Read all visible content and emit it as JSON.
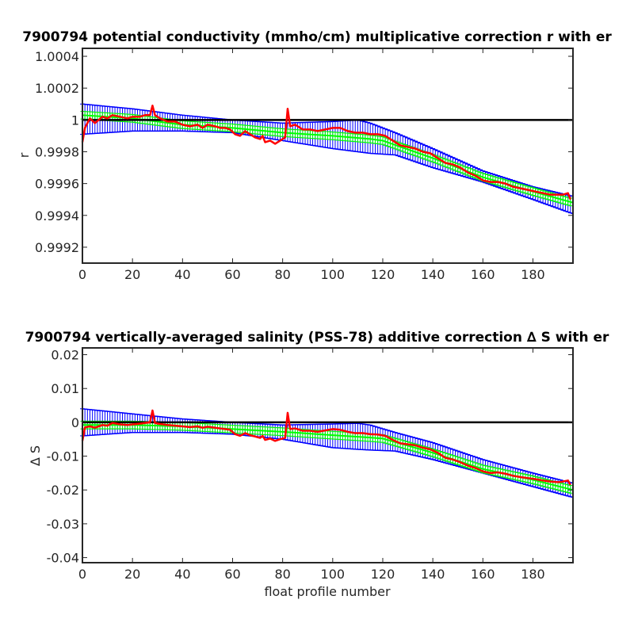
{
  "chart_data": [
    {
      "type": "line",
      "title": "7900794 potential conductivity (mmho/cm) multiplicative correction r with er",
      "xlabel": "",
      "ylabel": "r",
      "xlim": [
        0,
        196
      ],
      "ylim": [
        0.9991,
        1.00045
      ],
      "x_ticks": [
        "0",
        "20",
        "40",
        "60",
        "80",
        "100",
        "120",
        "140",
        "160",
        "180"
      ],
      "y_ticks": [
        "0.9992",
        "0.9994",
        "0.9996",
        "0.9998",
        "1",
        "1.0002",
        "1.0004"
      ],
      "y_tick_values": [
        0.9992,
        0.9994,
        0.9996,
        0.9998,
        1.0,
        1.0002,
        1.0004
      ],
      "reference_line": 1.0,
      "grid": false,
      "series": [
        {
          "color": "#ff0000",
          "role": "raw-correction",
          "points": [
            [
              0,
              0.99986
            ],
            [
              1,
              0.99995
            ],
            [
              3,
              1.00001
            ],
            [
              5,
              0.99998
            ],
            [
              8,
              1.00002
            ],
            [
              10,
              1.00001
            ],
            [
              12,
              1.00003
            ],
            [
              15,
              1.00002
            ],
            [
              18,
              1.00001
            ],
            [
              20,
              1.00002
            ],
            [
              23,
              1.00002
            ],
            [
              25,
              1.00003
            ],
            [
              27,
              1.00003
            ],
            [
              28,
              1.00009
            ],
            [
              29,
              1.00003
            ],
            [
              31,
              1.00001
            ],
            [
              34,
              0.99999
            ],
            [
              37,
              0.99999
            ],
            [
              40,
              0.99997
            ],
            [
              43,
              0.99996
            ],
            [
              46,
              0.99997
            ],
            [
              48,
              0.99995
            ],
            [
              50,
              0.99997
            ],
            [
              53,
              0.99996
            ],
            [
              55,
              0.99995
            ],
            [
              57,
              0.99995
            ],
            [
              59,
              0.99994
            ],
            [
              61,
              0.99991
            ],
            [
              63,
              0.9999
            ],
            [
              65,
              0.99993
            ],
            [
              67,
              0.99991
            ],
            [
              69,
              0.99989
            ],
            [
              71,
              0.99988
            ],
            [
              72,
              0.9999
            ],
            [
              73,
              0.99986
            ],
            [
              75,
              0.99987
            ],
            [
              77,
              0.99985
            ],
            [
              79,
              0.99987
            ],
            [
              81,
              0.99989
            ],
            [
              82,
              1.00007
            ],
            [
              83,
              0.99996
            ],
            [
              85,
              0.99997
            ],
            [
              88,
              0.99994
            ],
            [
              91,
              0.99994
            ],
            [
              94,
              0.99993
            ],
            [
              97,
              0.99994
            ],
            [
              100,
              0.99995
            ],
            [
              103,
              0.99995
            ],
            [
              106,
              0.99993
            ],
            [
              109,
              0.99992
            ],
            [
              112,
              0.99992
            ],
            [
              115,
              0.99991
            ],
            [
              118,
              0.99991
            ],
            [
              121,
              0.9999
            ],
            [
              124,
              0.99987
            ],
            [
              127,
              0.99984
            ],
            [
              130,
              0.99983
            ],
            [
              133,
              0.99982
            ],
            [
              136,
              0.9998
            ],
            [
              139,
              0.99979
            ],
            [
              142,
              0.99976
            ],
            [
              145,
              0.99973
            ],
            [
              148,
              0.99972
            ],
            [
              151,
              0.9997
            ],
            [
              154,
              0.99967
            ],
            [
              157,
              0.99965
            ],
            [
              160,
              0.99962
            ],
            [
              163,
              0.99961
            ],
            [
              166,
              0.99961
            ],
            [
              169,
              0.9996
            ],
            [
              172,
              0.99958
            ],
            [
              175,
              0.99957
            ],
            [
              178,
              0.99956
            ],
            [
              181,
              0.99955
            ],
            [
              184,
              0.99954
            ],
            [
              187,
              0.99953
            ],
            [
              190,
              0.99953
            ],
            [
              192,
              0.99953
            ],
            [
              194,
              0.99954
            ],
            [
              195,
              0.9995
            ]
          ]
        },
        {
          "color": "#00ff00",
          "role": "fit",
          "points": [
            [
              0,
              1.00003
            ],
            [
              20,
              1.00001
            ],
            [
              40,
              0.99997
            ],
            [
              60,
              0.99995
            ],
            [
              80,
              0.99992
            ],
            [
              100,
              0.9999
            ],
            [
              115,
              0.99988
            ],
            [
              120,
              0.99987
            ],
            [
              140,
              0.99976
            ],
            [
              160,
              0.99964
            ],
            [
              180,
              0.99955
            ],
            [
              196,
              0.99948
            ]
          ]
        },
        {
          "color": "#0000ff",
          "role": "error-upper",
          "points": [
            [
              0,
              1.0001
            ],
            [
              20,
              1.00007
            ],
            [
              40,
              1.00003
            ],
            [
              60,
              1.0
            ],
            [
              80,
              0.99998
            ],
            [
              100,
              0.99999
            ],
            [
              110,
              1.0
            ],
            [
              115,
              0.99998
            ],
            [
              125,
              0.99992
            ],
            [
              140,
              0.99982
            ],
            [
              160,
              0.99968
            ],
            [
              180,
              0.99958
            ],
            [
              196,
              0.99952
            ]
          ]
        },
        {
          "color": "#0000ff",
          "role": "error-lower",
          "points": [
            [
              0,
              0.99991
            ],
            [
              20,
              0.99993
            ],
            [
              40,
              0.99993
            ],
            [
              60,
              0.99992
            ],
            [
              80,
              0.99987
            ],
            [
              100,
              0.99982
            ],
            [
              110,
              0.9998
            ],
            [
              115,
              0.99979
            ],
            [
              125,
              0.99978
            ],
            [
              140,
              0.9997
            ],
            [
              160,
              0.99961
            ],
            [
              180,
              0.9995
            ],
            [
              196,
              0.99941
            ]
          ]
        }
      ]
    },
    {
      "type": "line",
      "title": "7900794 vertically-averaged salinity (PSS-78) additive correction ∆ S with er",
      "xlabel": "float profile number",
      "ylabel": "∆ S",
      "xlim": [
        0,
        196
      ],
      "ylim": [
        -0.0415,
        0.022
      ],
      "x_ticks": [
        "0",
        "20",
        "40",
        "60",
        "80",
        "100",
        "120",
        "140",
        "160",
        "180"
      ],
      "y_ticks": [
        "-0.04",
        "-0.03",
        "-0.02",
        "-0.01",
        "0",
        "0.01",
        "0.02"
      ],
      "y_tick_values": [
        -0.04,
        -0.03,
        -0.02,
        -0.01,
        0,
        0.01,
        0.02
      ],
      "reference_line": 0,
      "grid": false,
      "series": [
        {
          "color": "#ff0000",
          "role": "raw-correction",
          "points": [
            [
              0,
              -0.0055
            ],
            [
              1,
              -0.0015
            ],
            [
              3,
              -0.0012
            ],
            [
              5,
              -0.0016
            ],
            [
              8,
              -0.0008
            ],
            [
              10,
              -0.001
            ],
            [
              12,
              -0.0002
            ],
            [
              15,
              -0.0006
            ],
            [
              18,
              -0.0008
            ],
            [
              20,
              -0.0006
            ],
            [
              23,
              -0.0004
            ],
            [
              25,
              -0.0002
            ],
            [
              27,
              0.0
            ],
            [
              28,
              0.0035
            ],
            [
              29,
              -0.0002
            ],
            [
              31,
              -0.0005
            ],
            [
              34,
              -0.0008
            ],
            [
              37,
              -0.001
            ],
            [
              40,
              -0.0012
            ],
            [
              43,
              -0.0014
            ],
            [
              46,
              -0.0012
            ],
            [
              48,
              -0.0016
            ],
            [
              50,
              -0.0013
            ],
            [
              53,
              -0.0016
            ],
            [
              55,
              -0.0018
            ],
            [
              57,
              -0.002
            ],
            [
              59,
              -0.0022
            ],
            [
              61,
              -0.0035
            ],
            [
              63,
              -0.004
            ],
            [
              65,
              -0.0032
            ],
            [
              67,
              -0.0038
            ],
            [
              69,
              -0.0042
            ],
            [
              71,
              -0.0046
            ],
            [
              72,
              -0.004
            ],
            [
              73,
              -0.0052
            ],
            [
              75,
              -0.0048
            ],
            [
              77,
              -0.0055
            ],
            [
              79,
              -0.005
            ],
            [
              81,
              -0.0046
            ],
            [
              82,
              0.0028
            ],
            [
              83,
              -0.002
            ],
            [
              85,
              -0.0018
            ],
            [
              88,
              -0.0025
            ],
            [
              91,
              -0.0025
            ],
            [
              94,
              -0.0028
            ],
            [
              97,
              -0.0024
            ],
            [
              100,
              -0.002
            ],
            [
              103,
              -0.0022
            ],
            [
              106,
              -0.0028
            ],
            [
              109,
              -0.0032
            ],
            [
              112,
              -0.0032
            ],
            [
              115,
              -0.0035
            ],
            [
              118,
              -0.0036
            ],
            [
              121,
              -0.004
            ],
            [
              124,
              -0.0052
            ],
            [
              127,
              -0.0062
            ],
            [
              130,
              -0.0065
            ],
            [
              133,
              -0.0068
            ],
            [
              136,
              -0.0075
            ],
            [
              139,
              -0.008
            ],
            [
              142,
              -0.009
            ],
            [
              145,
              -0.0105
            ],
            [
              148,
              -0.011
            ],
            [
              151,
              -0.0118
            ],
            [
              154,
              -0.0128
            ],
            [
              157,
              -0.0135
            ],
            [
              160,
              -0.0145
            ],
            [
              163,
              -0.015
            ],
            [
              166,
              -0.0148
            ],
            [
              169,
              -0.0152
            ],
            [
              172,
              -0.0158
            ],
            [
              175,
              -0.0162
            ],
            [
              178,
              -0.0165
            ],
            [
              181,
              -0.0168
            ],
            [
              184,
              -0.0172
            ],
            [
              187,
              -0.0175
            ],
            [
              190,
              -0.0177
            ],
            [
              192,
              -0.0175
            ],
            [
              194,
              -0.0172
            ],
            [
              195,
              -0.0185
            ]
          ]
        },
        {
          "color": "#00ff00",
          "role": "fit",
          "points": [
            [
              0,
              -0.0008
            ],
            [
              20,
              -0.0008
            ],
            [
              40,
              -0.0012
            ],
            [
              60,
              -0.002
            ],
            [
              80,
              -0.0028
            ],
            [
              100,
              -0.0038
            ],
            [
              115,
              -0.0045
            ],
            [
              120,
              -0.0048
            ],
            [
              140,
              -0.009
            ],
            [
              160,
              -0.0138
            ],
            [
              180,
              -0.017
            ],
            [
              196,
              -0.02
            ]
          ]
        },
        {
          "color": "#0000ff",
          "role": "error-upper",
          "points": [
            [
              0,
              0.004
            ],
            [
              20,
              0.0025
            ],
            [
              40,
              0.001
            ],
            [
              60,
              0.0
            ],
            [
              80,
              -0.0008
            ],
            [
              100,
              -0.0005
            ],
            [
              110,
              -0.0003
            ],
            [
              115,
              -0.0008
            ],
            [
              125,
              -0.003
            ],
            [
              140,
              -0.006
            ],
            [
              160,
              -0.011
            ],
            [
              180,
              -0.015
            ],
            [
              196,
              -0.018
            ]
          ]
        },
        {
          "color": "#0000ff",
          "role": "error-lower",
          "points": [
            [
              0,
              -0.004
            ],
            [
              20,
              -0.003
            ],
            [
              40,
              -0.003
            ],
            [
              60,
              -0.0035
            ],
            [
              80,
              -0.005
            ],
            [
              100,
              -0.0075
            ],
            [
              110,
              -0.008
            ],
            [
              115,
              -0.0082
            ],
            [
              125,
              -0.0085
            ],
            [
              140,
              -0.011
            ],
            [
              160,
              -0.015
            ],
            [
              180,
              -0.019
            ],
            [
              196,
              -0.0222
            ]
          ]
        }
      ]
    }
  ]
}
